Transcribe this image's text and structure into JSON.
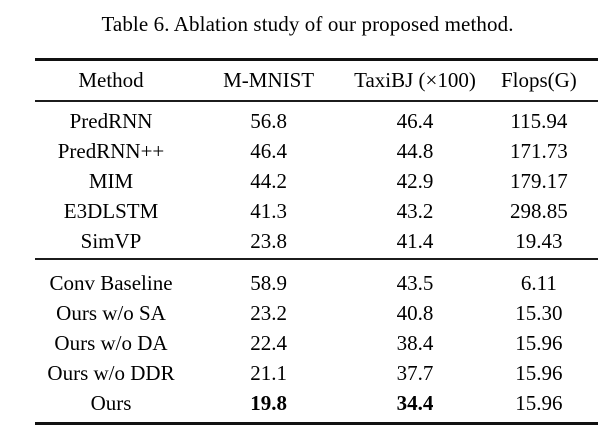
{
  "caption": "Table 6. Ablation study of our proposed method.",
  "colors": {
    "text": "#000000",
    "background": "#ffffff",
    "rule": "#1c1c1c",
    "rule_heavy": "#111111"
  },
  "table": {
    "headers": [
      "Method",
      "M-MNIST",
      "TaxiBJ (×100)",
      "Flops(G)"
    ],
    "column_keys": [
      "method",
      "mmnist",
      "taxibj",
      "flops"
    ],
    "groups": [
      {
        "name": "prior-methods",
        "rows": [
          {
            "method": "PredRNN",
            "mmnist": "56.8",
            "taxibj": "46.4",
            "flops": "115.94",
            "bold": []
          },
          {
            "method": "PredRNN++",
            "mmnist": "46.4",
            "taxibj": "44.8",
            "flops": "171.73",
            "bold": []
          },
          {
            "method": "MIM",
            "mmnist": "44.2",
            "taxibj": "42.9",
            "flops": "179.17",
            "bold": []
          },
          {
            "method": "E3DLSTM",
            "mmnist": "41.3",
            "taxibj": "43.2",
            "flops": "298.85",
            "bold": []
          },
          {
            "method": "SimVP",
            "mmnist": "23.8",
            "taxibj": "41.4",
            "flops": "19.43",
            "bold": []
          }
        ]
      },
      {
        "name": "ours-ablations",
        "rows": [
          {
            "method": "Conv Baseline",
            "mmnist": "58.9",
            "taxibj": "43.5",
            "flops": "6.11",
            "bold": []
          },
          {
            "method": "Ours w/o SA",
            "mmnist": "23.2",
            "taxibj": "40.8",
            "flops": "15.30",
            "bold": []
          },
          {
            "method": "Ours w/o DA",
            "mmnist": "22.4",
            "taxibj": "38.4",
            "flops": "15.96",
            "bold": []
          },
          {
            "method": "Ours w/o DDR",
            "mmnist": "21.1",
            "taxibj": "37.7",
            "flops": "15.96",
            "bold": []
          },
          {
            "method": "Ours",
            "mmnist": "19.8",
            "taxibj": "34.4",
            "flops": "15.96",
            "bold": [
              "mmnist",
              "taxibj"
            ]
          }
        ]
      }
    ]
  }
}
